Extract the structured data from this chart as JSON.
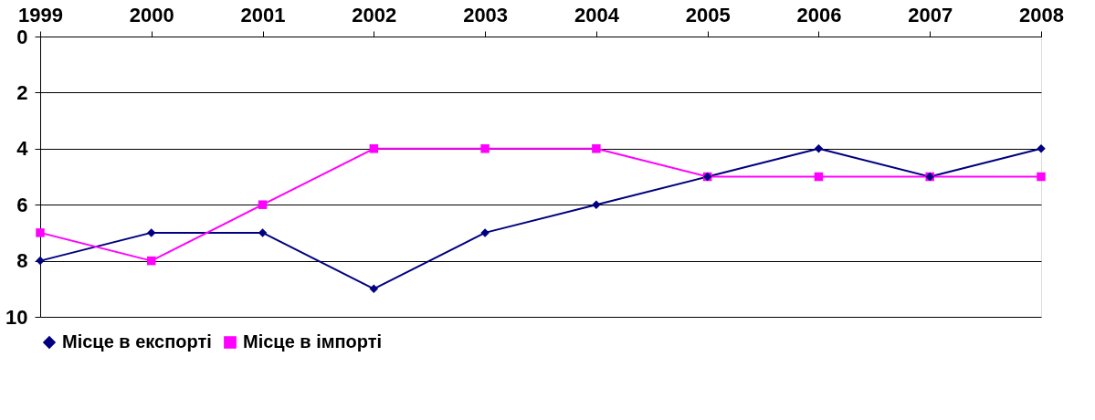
{
  "chart_data": {
    "type": "line",
    "categories": [
      "1999",
      "2000",
      "2001",
      "2002",
      "2003",
      "2004",
      "2005",
      "2006",
      "2007",
      "2008"
    ],
    "series": [
      {
        "name": "Місце в експорті",
        "color": "#000080",
        "marker": "diamond",
        "values": [
          8,
          7,
          7,
          9,
          7,
          6,
          5,
          4,
          5,
          4
        ]
      },
      {
        "name": "Місце в імпорті",
        "color": "#ff00ff",
        "marker": "square",
        "values": [
          7,
          8,
          6,
          4,
          4,
          4,
          5,
          5,
          5,
          5
        ]
      }
    ],
    "ylim": [
      10,
      0
    ],
    "yticks": [
      0,
      2,
      4,
      6,
      8,
      10
    ],
    "grid": "y",
    "legend": "bottom",
    "line_style": "solid"
  }
}
